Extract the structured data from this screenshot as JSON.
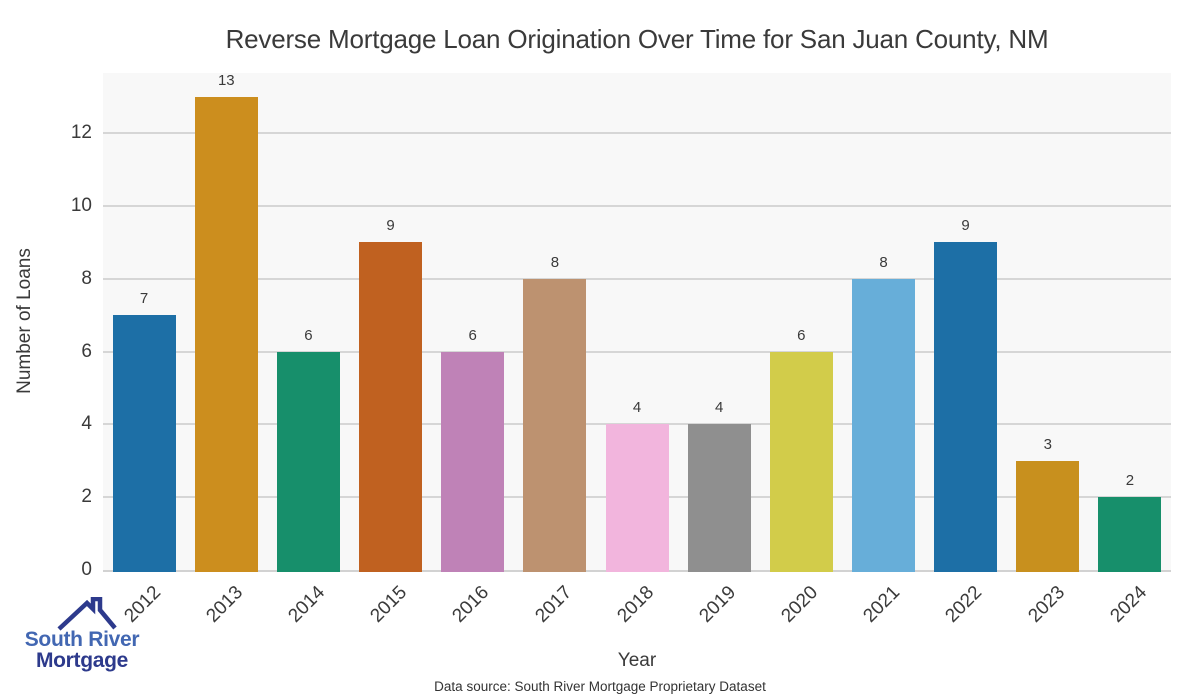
{
  "title": "Reverse Mortgage Loan Origination Over Time for San Juan County, NM",
  "chart_data": {
    "type": "bar",
    "title": "Reverse Mortgage Loan Origination Over Time for San Juan County, NM",
    "categories": [
      "2012",
      "2013",
      "2014",
      "2015",
      "2016",
      "2017",
      "2018",
      "2019",
      "2020",
      "2021",
      "2022",
      "2023",
      "2024"
    ],
    "values": [
      7,
      13,
      6,
      9,
      6,
      8,
      4,
      4,
      6,
      8,
      9,
      3,
      2
    ],
    "bar_colors": [
      "#1d6fa6",
      "#cc8e1e",
      "#178f6b",
      "#c06120",
      "#bf82b7",
      "#bd9270",
      "#f2b5dd",
      "#8f8f8f",
      "#d2cc4a",
      "#67aed9",
      "#1d6fa6",
      "#c8901e",
      "#178f6b"
    ],
    "value_labels": [
      "7",
      "13",
      "6",
      "9",
      "6",
      "8",
      "4",
      "4",
      "6",
      "8",
      "9",
      "3",
      "2"
    ],
    "xlabel": "Year",
    "ylabel": "Number of Loans",
    "yticks": [
      0,
      2,
      4,
      6,
      8,
      10,
      12
    ],
    "ylim": [
      0,
      13.65
    ],
    "grid": "horizontal",
    "legend": "none",
    "panel_bg": "#f8f8f8",
    "grid_color": "#d6d6d6",
    "text_color": "#3a3a3a"
  },
  "footer": {
    "source_note": "Data source: South River Mortgage Proprietary Dataset"
  },
  "logo": {
    "line1": "South River",
    "line2": "Mortgage",
    "icon": "house-roof-icon",
    "line1_color": "#4267b2",
    "line2_color": "#2d3a8c"
  }
}
